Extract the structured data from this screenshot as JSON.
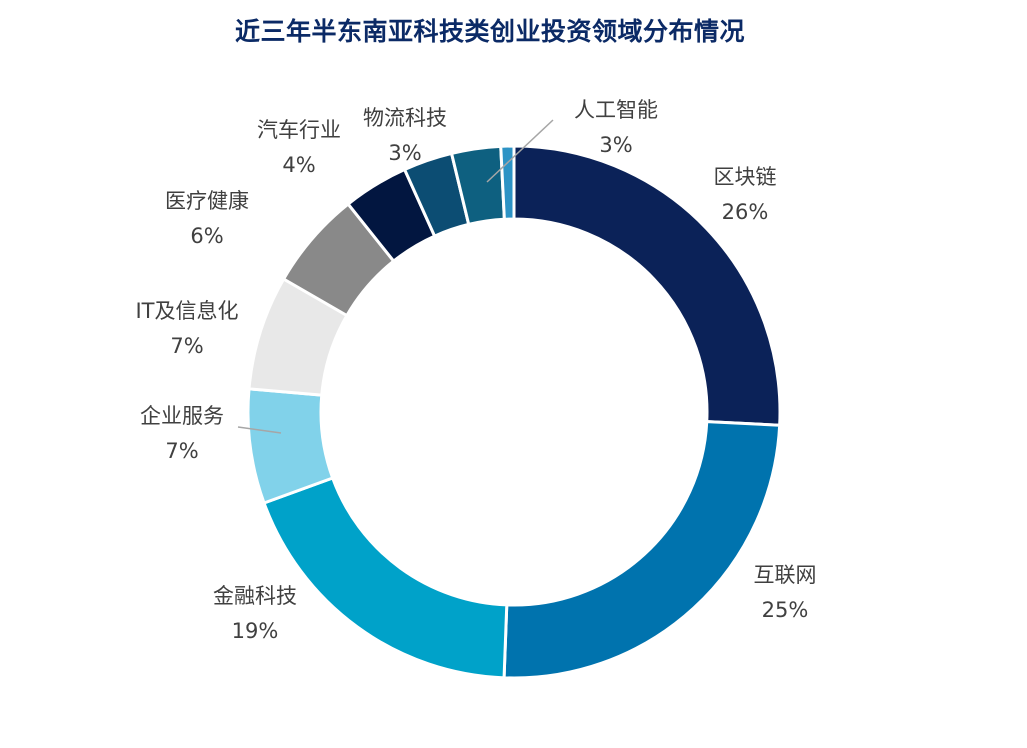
{
  "chart_data": {
    "type": "pie",
    "subtype": "donut",
    "title": "近三年半东南亚科技类创业投资领域分布情况",
    "legend": "none",
    "slices": [
      {
        "name": "区块链",
        "value": 26,
        "label": "26%",
        "color": "#0b2258"
      },
      {
        "name": "互联网",
        "value": 25,
        "label": "25%",
        "color": "#0073ae"
      },
      {
        "name": "金融科技",
        "value": 19,
        "label": "19%",
        "color": "#00a2c9"
      },
      {
        "name": "企业服务",
        "value": 7,
        "label": "7%",
        "color": "#81d2ea"
      },
      {
        "name": "IT及信息化",
        "value": 7,
        "label": "7%",
        "color": "#e8e8e8"
      },
      {
        "name": "医疗健康",
        "value": 6,
        "label": "6%",
        "color": "#898989"
      },
      {
        "name": "汽车行业",
        "value": 4,
        "label": "4%",
        "color": "#021640"
      },
      {
        "name": "物流科技",
        "value": 3,
        "label": "3%",
        "color": "#0c4d73"
      },
      {
        "name": "人工智能",
        "value": 3,
        "label": "3%",
        "color": "#0e6080"
      },
      {
        "name": "",
        "value": 0.8,
        "label": "",
        "color": "#2d93c5"
      }
    ]
  }
}
